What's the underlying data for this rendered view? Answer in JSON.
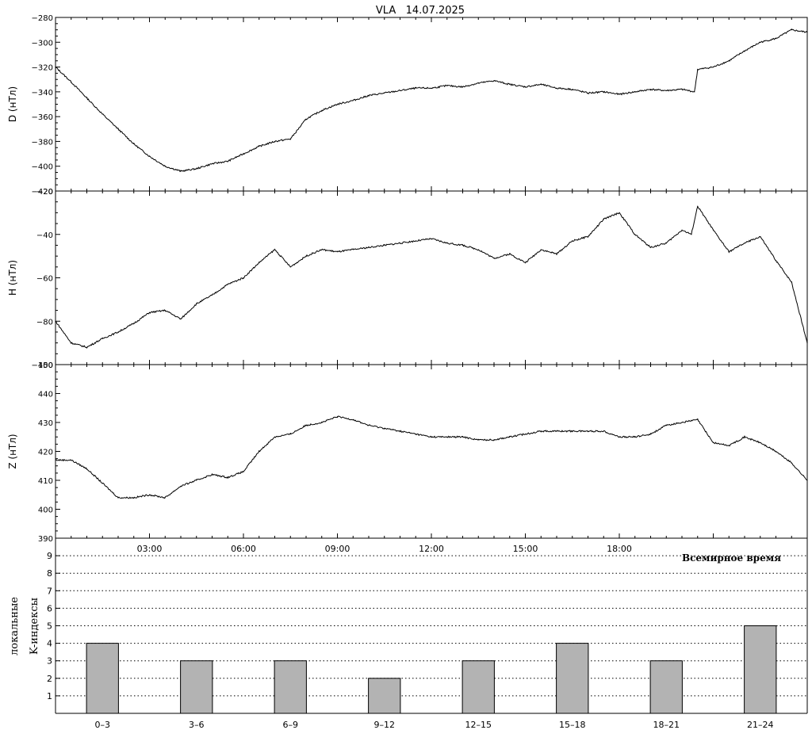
{
  "title": "VLA   14.07.2025",
  "time_axis": {
    "ticks": [
      "03:00",
      "06:00",
      "09:00",
      "12:00",
      "15:00",
      "18:00"
    ],
    "label": "Всемирное время"
  },
  "k_axis": {
    "ylabel_line1": "локальные",
    "ylabel_line2": "K-индексы"
  },
  "chart_data": [
    {
      "type": "line",
      "panel": "D",
      "ylabel": "D (нТл)",
      "ylim": [
        -420,
        -280
      ],
      "yticks": [
        "-280",
        "-300",
        "-320",
        "-340",
        "-360",
        "-380",
        "-400",
        "-420"
      ],
      "xlim": [
        0,
        24
      ],
      "x_unit": "hours UT",
      "x": [
        0,
        0.5,
        1,
        1.5,
        2,
        2.5,
        3,
        3.5,
        4,
        4.5,
        5,
        5.5,
        6,
        6.5,
        7,
        7.5,
        8,
        8.5,
        9,
        9.5,
        10,
        10.5,
        11,
        11.5,
        12,
        12.5,
        13,
        13.5,
        14,
        14.5,
        15,
        15.5,
        16,
        16.5,
        17,
        17.5,
        18,
        18.5,
        19,
        19.5,
        20,
        20.4,
        20.5,
        21,
        21.5,
        22,
        22.5,
        23,
        23.5,
        24
      ],
      "values": [
        -320,
        -332,
        -345,
        -358,
        -370,
        -382,
        -392,
        -400,
        -404,
        -402,
        -398,
        -396,
        -390,
        -384,
        -380,
        -378,
        -362,
        -355,
        -350,
        -347,
        -343,
        -341,
        -339,
        -337,
        -337,
        -335,
        -336,
        -333,
        -331,
        -334,
        -336,
        -334,
        -337,
        -338,
        -341,
        -340,
        -342,
        -340,
        -338,
        -339,
        -338,
        -340,
        -322,
        -320,
        -315,
        -307,
        -300,
        -297,
        -290,
        -292
      ]
    },
    {
      "type": "line",
      "panel": "H",
      "ylabel": "H (нТл)",
      "ylim": [
        -100,
        -20
      ],
      "yticks": [
        "-20",
        "-40",
        "-60",
        "-80",
        "-100"
      ],
      "xlim": [
        0,
        24
      ],
      "x_unit": "hours UT",
      "x": [
        0,
        0.5,
        1,
        1.5,
        2,
        2.5,
        3,
        3.5,
        4,
        4.5,
        5,
        5.5,
        6,
        6.5,
        7,
        7.5,
        8,
        8.5,
        9,
        9.5,
        10,
        10.5,
        11,
        11.5,
        12,
        12.5,
        13,
        13.5,
        14,
        14.5,
        15,
        15.5,
        16,
        16.5,
        17,
        17.5,
        18,
        18.5,
        19,
        19.5,
        20,
        20.3,
        20.5,
        21,
        21.5,
        22,
        22.5,
        23,
        23.5,
        24
      ],
      "values": [
        -80,
        -90,
        -92,
        -88,
        -85,
        -81,
        -76,
        -75,
        -79,
        -72,
        -68,
        -63,
        -60,
        -53,
        -47,
        -55,
        -50,
        -47,
        -48,
        -47,
        -46,
        -45,
        -44,
        -43,
        -42,
        -44,
        -45,
        -47,
        -51,
        -49,
        -53,
        -47,
        -49,
        -43,
        -41,
        -33,
        -30,
        -40,
        -46,
        -44,
        -38,
        -40,
        -27,
        -38,
        -48,
        -44,
        -41,
        -52,
        -62,
        -90
      ]
    },
    {
      "type": "line",
      "panel": "Z",
      "ylabel": "Z (нТл)",
      "ylim": [
        390,
        450
      ],
      "yticks": [
        "390",
        "400",
        "410",
        "420",
        "430",
        "440",
        "450"
      ],
      "xlim": [
        0,
        24
      ],
      "x_unit": "hours UT",
      "x": [
        0,
        0.5,
        1,
        1.5,
        2,
        2.5,
        3,
        3.5,
        4,
        4.5,
        5,
        5.5,
        6,
        6.5,
        7,
        7.5,
        8,
        8.5,
        9,
        9.5,
        10,
        10.5,
        11,
        11.5,
        12,
        12.5,
        13,
        13.5,
        14,
        14.5,
        15,
        15.5,
        16,
        16.5,
        17,
        17.5,
        18,
        18.5,
        19,
        19.5,
        20,
        20.5,
        21,
        21.5,
        22,
        22.5,
        23,
        23.5,
        24
      ],
      "values": [
        417,
        417,
        414,
        409,
        404,
        404,
        405,
        404,
        408,
        410,
        412,
        411,
        413,
        420,
        425,
        426,
        429,
        430,
        432,
        431,
        429,
        428,
        427,
        426,
        425,
        425,
        425,
        424,
        424,
        425,
        426,
        427,
        427,
        427,
        427,
        427,
        425,
        425,
        426,
        429,
        430,
        431,
        423,
        422,
        425,
        423,
        420,
        416,
        410
      ]
    },
    {
      "type": "bar",
      "panel": "K",
      "categories": [
        "0–3",
        "3–6",
        "6–9",
        "9–12",
        "12–15",
        "15–18",
        "18–21",
        "21–24"
      ],
      "values": [
        4,
        3,
        3,
        2,
        3,
        4,
        3,
        5
      ],
      "ylim": [
        0,
        10
      ],
      "yticks": [
        "1",
        "2",
        "3",
        "4",
        "5",
        "6",
        "7",
        "8",
        "9"
      ],
      "bar_color": "#b3b3b3",
      "grid": "dotted horizontal"
    }
  ]
}
